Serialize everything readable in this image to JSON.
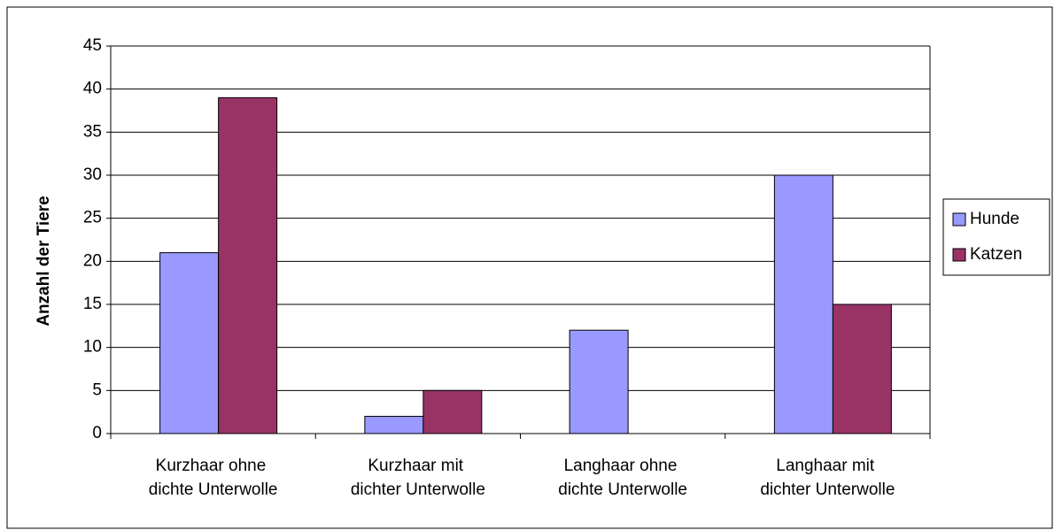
{
  "chart_data": {
    "type": "bar",
    "ylabel": "Anzahl der Tiere",
    "categories": [
      "Kurzhaar ohne dichte Unterwolle",
      "Kurzhaar mit dichter Unterwolle",
      "Langhaar ohne dichte Unterwolle",
      "Langhaar mit dichter Unterwolle"
    ],
    "series": [
      {
        "name": "Hunde",
        "color": "#9999ff",
        "values": [
          21,
          2,
          12,
          30
        ]
      },
      {
        "name": "Katzen",
        "color": "#993366",
        "values": [
          39,
          5,
          0,
          15
        ]
      }
    ],
    "ylim": [
      0,
      45
    ],
    "yticks": [
      0,
      5,
      10,
      15,
      20,
      25,
      30,
      35,
      40,
      45
    ],
    "grid": true,
    "legend": "right"
  }
}
